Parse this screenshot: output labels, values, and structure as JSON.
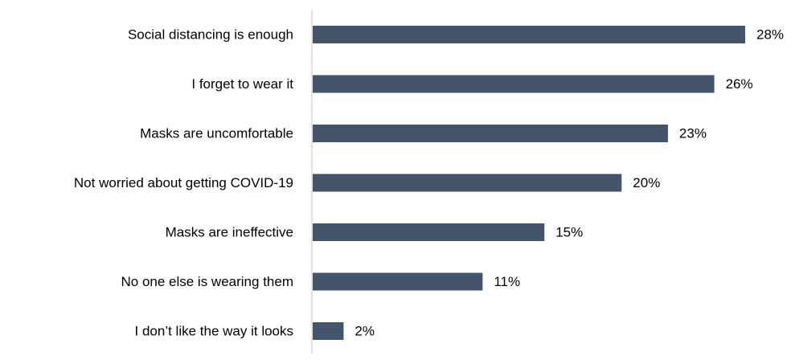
{
  "chart_data": {
    "type": "bar",
    "orientation": "horizontal",
    "categories": [
      "Social distancing is enough",
      "I forget to wear it",
      "Masks are uncomfortable",
      "Not worried about getting COVID-19",
      "Masks are ineffective",
      "No one else is wearing them",
      "I don’t like the way it looks"
    ],
    "values": [
      28,
      26,
      23,
      20,
      15,
      11,
      2
    ],
    "value_labels": [
      "28%",
      "26%",
      "23%",
      "20%",
      "15%",
      "11%",
      "2%"
    ],
    "value_unit": "%",
    "title": "",
    "xlabel": "",
    "ylabel": "",
    "xlim": [
      0,
      28
    ],
    "grid": false,
    "legend": "none",
    "bar_color": "#44546a",
    "axis_color": "#d9d9d9"
  }
}
